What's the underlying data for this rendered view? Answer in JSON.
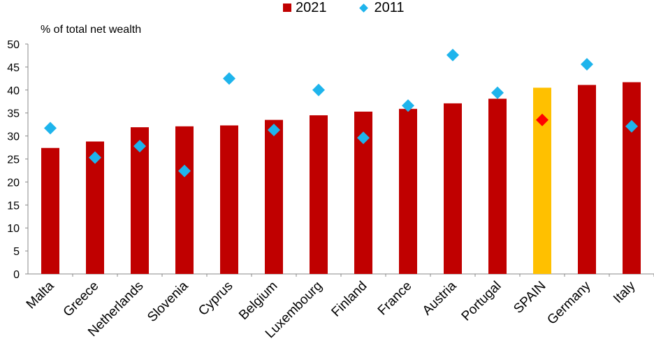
{
  "chart_data": {
    "type": "bar",
    "ylabel": "% of total net wealth",
    "ylim": [
      0,
      50
    ],
    "yticks": [
      0,
      5,
      10,
      15,
      20,
      25,
      30,
      35,
      40,
      45,
      50
    ],
    "categories": [
      "Malta",
      "Greece",
      "Netherlands",
      "Slovenia",
      "Cyprus",
      "Belgium",
      "Luxembourg",
      "Finland",
      "France",
      "Austria",
      "Portugal",
      "SPAIN",
      "Germany",
      "Italy"
    ],
    "series": [
      {
        "name": "2021",
        "kind": "bar",
        "values": [
          27.4,
          28.8,
          31.9,
          32.1,
          32.3,
          33.5,
          34.5,
          35.3,
          35.9,
          37.1,
          38.1,
          40.5,
          41.1,
          41.7
        ]
      },
      {
        "name": "2011",
        "kind": "marker",
        "values": [
          31.7,
          25.3,
          27.8,
          22.4,
          42.5,
          31.3,
          40.0,
          29.6,
          36.6,
          47.6,
          39.4,
          33.5,
          45.6,
          32.1
        ]
      }
    ],
    "highlight": {
      "category": "SPAIN",
      "bar_color": "#FFC000",
      "marker_color": "#FF0000"
    },
    "colors": {
      "bar": "#C00000",
      "marker": "#1EB4EC"
    },
    "legend_position": "top-center",
    "grid": false
  }
}
